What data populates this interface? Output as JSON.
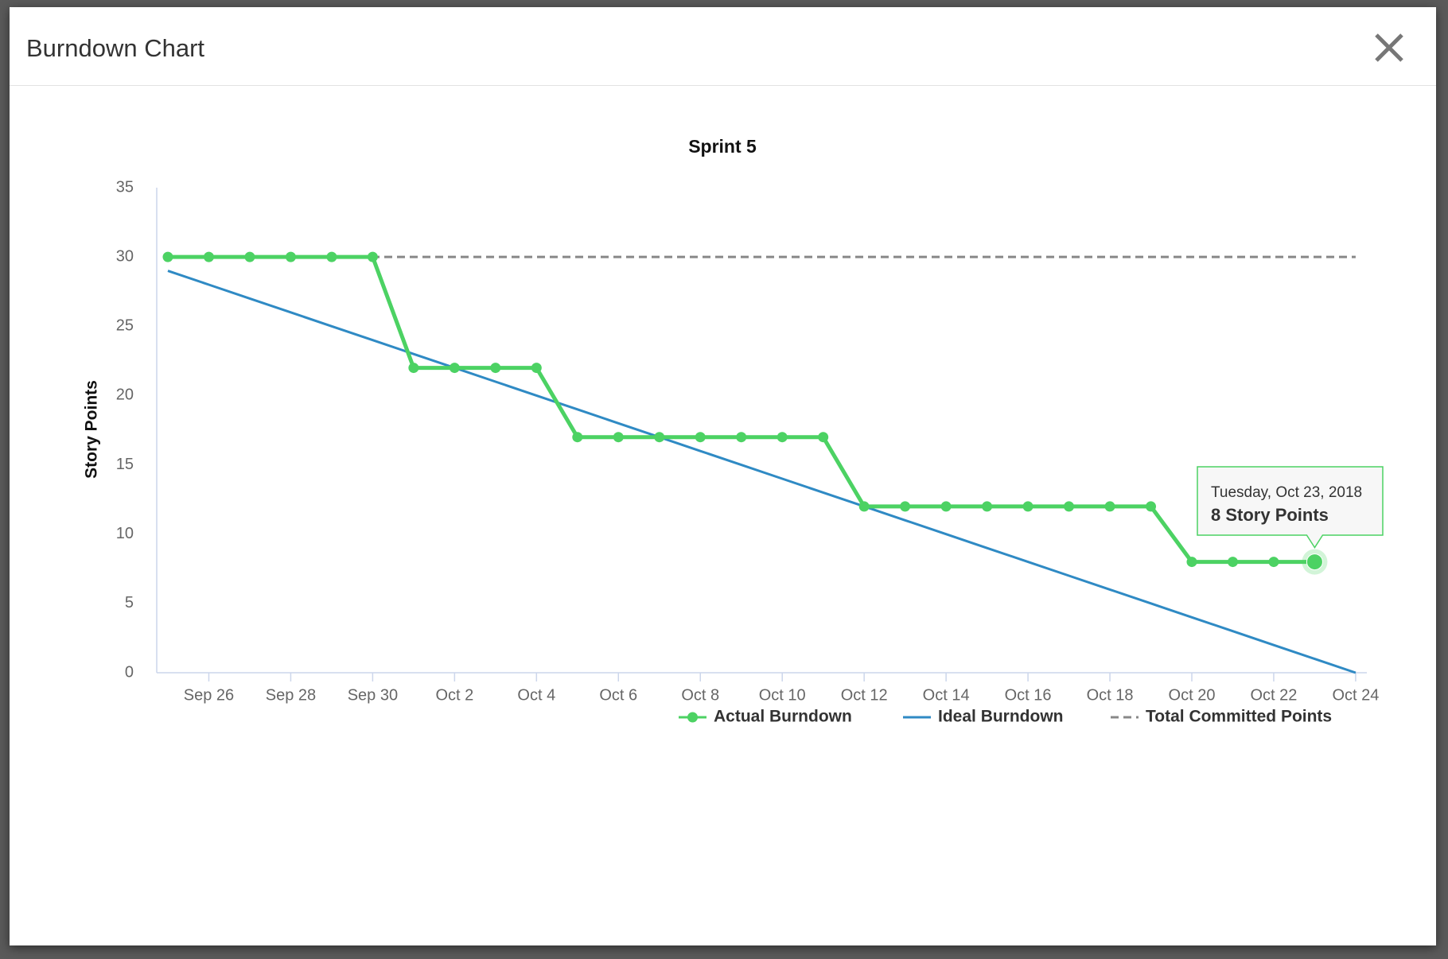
{
  "modal": {
    "title": "Burndown Chart"
  },
  "chart_data": {
    "type": "line",
    "title": "Sprint 5",
    "y_label": "Story Points",
    "categories": [
      null,
      "Sep 26",
      null,
      "Sep 28",
      null,
      "Sep 30",
      null,
      "Oct 2",
      null,
      "Oct 4",
      null,
      "Oct 6",
      null,
      "Oct 8",
      null,
      "Oct 10",
      null,
      "Oct 12",
      null,
      "Oct 14",
      null,
      "Oct 16",
      null,
      "Oct 18",
      null,
      "Oct 20",
      null,
      "Oct 22",
      null,
      "Oct 24"
    ],
    "series": [
      {
        "name": "Actual Burndown",
        "color": "#4cd263",
        "style": "solid",
        "markers": true,
        "values": [
          30,
          30,
          30,
          30,
          30,
          30,
          22,
          22,
          22,
          22,
          17,
          17,
          17,
          17,
          17,
          17,
          17,
          12,
          12,
          12,
          12,
          12,
          12,
          12,
          12,
          8,
          8,
          8,
          8,
          null
        ]
      },
      {
        "name": "Ideal Burndown",
        "color": "#2f8ac4",
        "style": "solid",
        "markers": false,
        "values": [
          29,
          28,
          27,
          26,
          25,
          24,
          23,
          22,
          21,
          20,
          19,
          18,
          17,
          16,
          15,
          14,
          13,
          12,
          11,
          10,
          9,
          8,
          7,
          6,
          5,
          4,
          3,
          2,
          1,
          0
        ]
      },
      {
        "name": "Total Committed Points",
        "color": "#888888",
        "style": "dashed",
        "markers": false,
        "values": [
          30,
          30,
          30,
          30,
          30,
          30,
          30,
          30,
          30,
          30,
          30,
          30,
          30,
          30,
          30,
          30,
          30,
          30,
          30,
          30,
          30,
          30,
          30,
          30,
          30,
          30,
          30,
          30,
          30,
          30
        ]
      }
    ],
    "ylim": [
      0,
      35
    ],
    "yticks": [
      0,
      5,
      10,
      15,
      20,
      25,
      30,
      35
    ],
    "grid": false,
    "tooltip": {
      "title": "Tuesday, Oct 23, 2018",
      "text": "8 Story Points"
    }
  }
}
